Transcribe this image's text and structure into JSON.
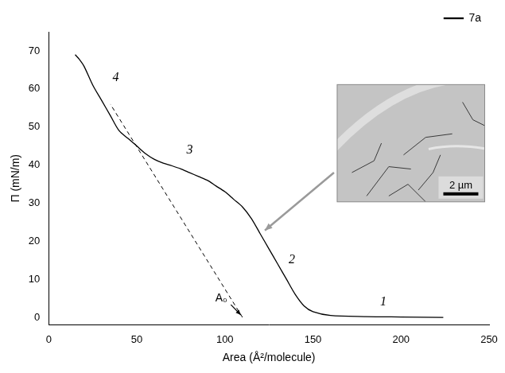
{
  "chart_data": {
    "type": "line",
    "x_label": "Area (Å²/molecule)",
    "y_label": "Π (mN/m)",
    "xlim": [
      0,
      250
    ],
    "xticks": [
      0,
      50,
      100,
      150,
      200,
      250
    ],
    "ylim": [
      -2,
      75
    ],
    "yticks": [
      0,
      10,
      20,
      30,
      40,
      50,
      60,
      70
    ],
    "grid": false,
    "legend": "top-right",
    "series": [
      {
        "name": "7a",
        "color": "#000000",
        "line_style": "solid",
        "x": [
          224,
          200,
          180,
          160,
          150,
          145,
          140,
          135,
          130,
          125,
          120,
          115,
          110,
          105,
          100,
          95,
          90,
          85,
          80,
          75,
          70,
          65,
          60,
          55,
          50,
          45,
          40,
          35,
          30,
          25,
          20,
          17,
          15
        ],
        "values": [
          0,
          0.1,
          0.2,
          0.5,
          1.5,
          3,
          6,
          10,
          14,
          18,
          22,
          26,
          29,
          31,
          33,
          34.5,
          36,
          37,
          38,
          39,
          39.8,
          40.5,
          41.5,
          43,
          45,
          47,
          49,
          53,
          57,
          61,
          66,
          68,
          69
        ]
      }
    ],
    "extrapolation": {
      "color": "#000000",
      "line_style": "dashed",
      "x": [
        110,
        35
      ],
      "values": [
        0,
        56
      ]
    },
    "annotations": [
      {
        "text": "1",
        "x": 190,
        "y": 4
      },
      {
        "text": "2",
        "x": 138,
        "y": 15
      },
      {
        "text": "3",
        "x": 80,
        "y": 44
      },
      {
        "text": "4",
        "x": 38,
        "y": 63
      },
      {
        "text": "A₀",
        "x": 98,
        "y": 5,
        "arrow_to": [
          110,
          0
        ]
      }
    ],
    "inset": {
      "scale_label": "2 µm",
      "arrow_to": [
        120,
        22
      ]
    }
  }
}
